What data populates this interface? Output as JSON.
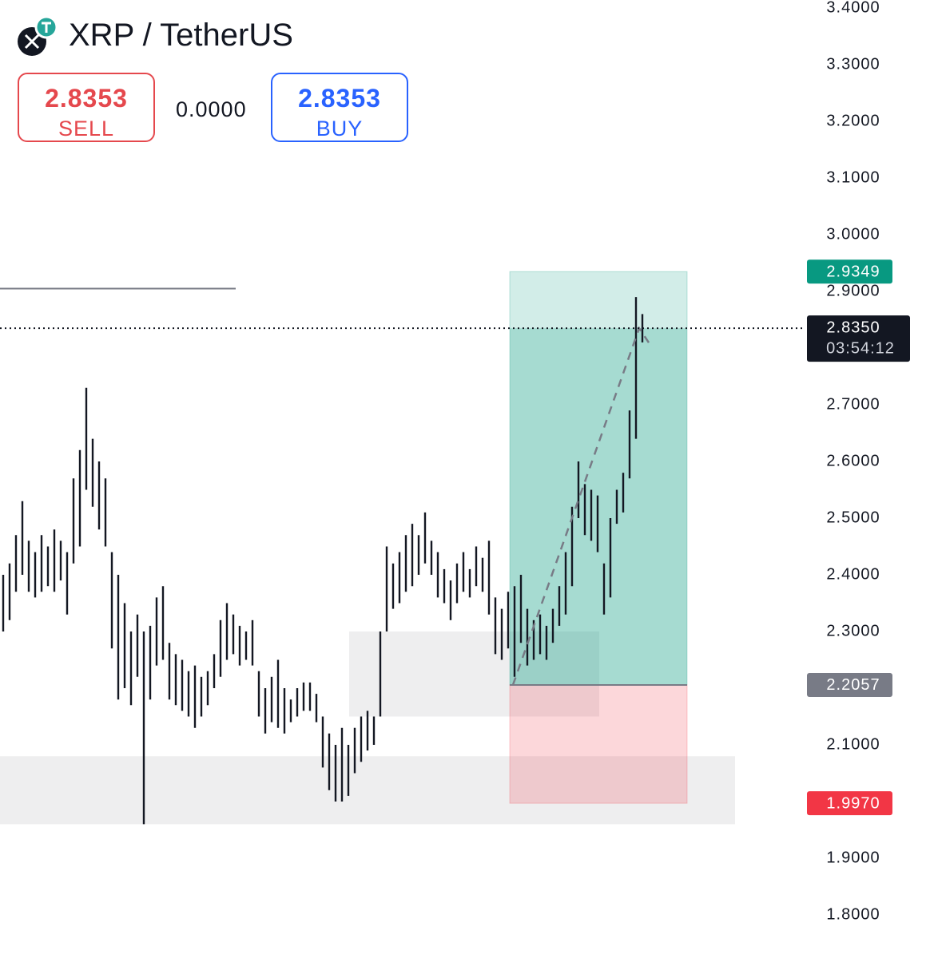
{
  "header": {
    "symbol": "XRP / TetherUS",
    "sell_price": "2.8353",
    "sell_label": "SELL",
    "spread": "0.0000",
    "buy_price": "2.8353",
    "buy_label": "BUY"
  },
  "chart_data": {
    "type": "range_bar",
    "color": "#131722",
    "high": [
      2.4,
      2.42,
      2.47,
      2.53,
      2.46,
      2.44,
      2.47,
      2.45,
      2.48,
      2.46,
      2.44,
      2.57,
      2.62,
      2.73,
      2.64,
      2.6,
      2.57,
      2.44,
      2.4,
      2.35,
      2.3,
      2.33,
      2.3,
      2.31,
      2.36,
      2.38,
      2.28,
      2.26,
      2.25,
      2.23,
      2.24,
      2.22,
      2.23,
      2.26,
      2.32,
      2.35,
      2.33,
      2.31,
      2.3,
      2.32,
      2.23,
      2.2,
      2.22,
      2.25,
      2.2,
      2.18,
      2.2,
      2.21,
      2.21,
      2.19,
      2.15,
      2.12,
      2.1,
      2.13,
      2.1,
      2.13,
      2.15,
      2.16,
      2.15,
      2.3,
      2.45,
      2.42,
      2.44,
      2.47,
      2.49,
      2.47,
      2.51,
      2.46,
      2.44,
      2.41,
      2.39,
      2.42,
      2.44,
      2.41,
      2.45,
      2.43,
      2.46,
      2.36,
      2.34,
      2.37,
      2.38,
      2.4,
      2.34,
      2.32,
      2.33,
      2.31,
      2.34,
      2.38,
      2.44,
      2.52,
      2.6,
      2.56,
      2.55,
      2.54,
      2.42,
      2.5,
      2.55,
      2.58,
      2.69,
      2.89,
      2.86
    ],
    "low": [
      2.3,
      2.32,
      2.37,
      2.4,
      2.37,
      2.36,
      2.37,
      2.38,
      2.37,
      2.39,
      2.33,
      2.42,
      2.45,
      2.55,
      2.52,
      2.48,
      2.45,
      2.27,
      2.18,
      2.2,
      2.17,
      2.22,
      1.96,
      2.18,
      2.24,
      2.25,
      2.18,
      2.17,
      2.16,
      2.15,
      2.13,
      2.15,
      2.17,
      2.2,
      2.22,
      2.25,
      2.26,
      2.24,
      2.25,
      2.24,
      2.15,
      2.12,
      2.14,
      2.13,
      2.12,
      2.14,
      2.15,
      2.16,
      2.16,
      2.14,
      2.06,
      2.02,
      2.0,
      2.0,
      2.01,
      2.05,
      2.07,
      2.09,
      2.1,
      2.15,
      2.3,
      2.34,
      2.35,
      2.37,
      2.38,
      2.4,
      2.42,
      2.4,
      2.36,
      2.35,
      2.32,
      2.35,
      2.37,
      2.36,
      2.38,
      2.37,
      2.33,
      2.26,
      2.25,
      2.27,
      2.22,
      2.28,
      2.24,
      2.25,
      2.26,
      2.25,
      2.28,
      2.31,
      2.33,
      2.38,
      2.5,
      2.47,
      2.46,
      2.44,
      2.33,
      2.36,
      2.49,
      2.51,
      2.57,
      2.64,
      2.81
    ],
    "ylim": [
      1.8,
      3.4
    ],
    "yticks": [
      {
        "value": 3.4,
        "label": "3.4000"
      },
      {
        "value": 3.3,
        "label": "3.3000"
      },
      {
        "value": 3.2,
        "label": "3.2000"
      },
      {
        "value": 3.1,
        "label": "3.1000"
      },
      {
        "value": 3.0,
        "label": "3.0000"
      },
      {
        "value": 2.9,
        "label": "2.9000"
      },
      {
        "value": 2.7,
        "label": "2.7000"
      },
      {
        "value": 2.6,
        "label": "2.6000"
      },
      {
        "value": 2.5,
        "label": "2.5000"
      },
      {
        "value": 2.4,
        "label": "2.4000"
      },
      {
        "value": 2.3,
        "label": "2.3000"
      },
      {
        "value": 2.1,
        "label": "2.1000"
      },
      {
        "value": 1.9,
        "label": "1.9000"
      },
      {
        "value": 1.8,
        "label": "1.8000"
      }
    ],
    "position": {
      "values": [
        2.9349,
        2.2057,
        1.997
      ],
      "value_labels": [
        "2.9349",
        "2.2057",
        "1.9970"
      ],
      "colors": [
        "#089981",
        "#787b86",
        "#f23645"
      ]
    },
    "last_price": {
      "value": 2.835,
      "value_label": "2.8350",
      "countdown": "03:54:12"
    },
    "zones": [
      {
        "top": 2.3,
        "bottom": 2.15
      },
      {
        "top": 2.08,
        "bottom": 1.96
      }
    ],
    "hline": 2.905
  }
}
